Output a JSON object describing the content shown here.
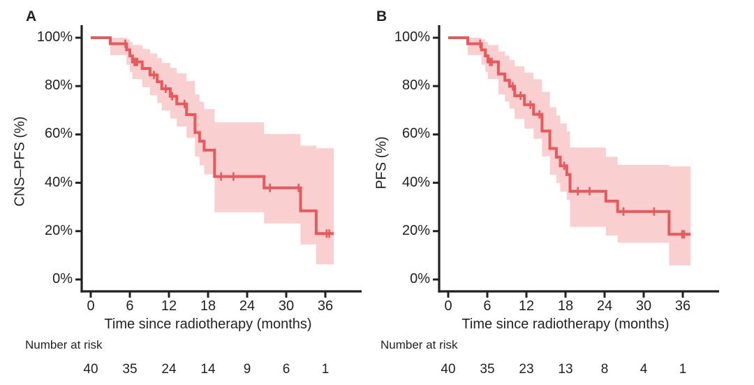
{
  "colors": {
    "curve": "#e8595c",
    "band": "#f9cfcf",
    "axis": "#231f20",
    "text": "#231f20"
  },
  "chart_data": [
    {
      "type": "line",
      "subtype": "kaplan-meier-step-curve-with-confidence-band",
      "panel_label": "A",
      "ylabel": "CNS–PFS (%)",
      "xlabel": "Time since radiotherapy (months)",
      "risk_label": "Number at risk",
      "xticks": [
        0,
        6,
        12,
        18,
        24,
        30,
        36
      ],
      "ytick_values": [
        0,
        20,
        40,
        60,
        80,
        100
      ],
      "ytick_labels": [
        "0%",
        "20%",
        "40%",
        "60%",
        "80%",
        "100%"
      ],
      "xlim": [
        0,
        41.5
      ],
      "ylim": [
        0,
        100
      ],
      "risk_counts": [
        40,
        35,
        24,
        14,
        9,
        6,
        1
      ],
      "steps": [
        [
          0,
          100
        ],
        [
          3,
          97.5
        ],
        [
          5.5,
          95
        ],
        [
          6,
          92.5
        ],
        [
          6.4,
          90
        ],
        [
          7.9,
          87.3
        ],
        [
          9.1,
          84.6
        ],
        [
          10.2,
          81.8
        ],
        [
          10.9,
          78.9
        ],
        [
          12.2,
          75.8
        ],
        [
          13.2,
          72.6
        ],
        [
          14.7,
          68.2
        ],
        [
          16,
          60.8
        ],
        [
          16.7,
          57.2
        ],
        [
          17.4,
          53.5
        ],
        [
          19,
          42.6
        ],
        [
          26.6,
          37.9
        ],
        [
          32.2,
          28.4
        ],
        [
          34.6,
          19
        ]
      ],
      "t_end": 37.3,
      "censor_times": [
        5.3,
        6.7,
        6.9,
        7.15,
        9.7,
        11.5,
        12.5,
        14.4,
        20,
        21.9,
        27.5,
        31.9,
        36.2,
        36.6
      ],
      "band": [
        [
          3,
          92.8,
          100
        ],
        [
          5.5,
          88.8,
          99.4
        ],
        [
          6,
          85.8,
          98.3
        ],
        [
          6.4,
          82.9,
          97
        ],
        [
          7.9,
          79.5,
          95.3
        ],
        [
          9.1,
          76.2,
          93.5
        ],
        [
          10.2,
          73,
          91.6
        ],
        [
          10.9,
          69.9,
          89.6
        ],
        [
          12.2,
          66.6,
          87.5
        ],
        [
          13.2,
          63.3,
          85.3
        ],
        [
          14.7,
          58.6,
          82.1
        ],
        [
          16,
          50.9,
          76.5
        ],
        [
          16.7,
          47.2,
          73.5
        ],
        [
          17.4,
          43.5,
          70.5
        ],
        [
          19,
          27.8,
          65
        ],
        [
          26.6,
          23.2,
          60.2
        ],
        [
          32.2,
          14.5,
          55.4
        ],
        [
          34.6,
          6.3,
          54.3
        ]
      ]
    },
    {
      "type": "line",
      "subtype": "kaplan-meier-step-curve-with-confidence-band",
      "panel_label": "B",
      "ylabel": "PFS (%)",
      "xlabel": "Time since radiotherapy (months)",
      "risk_label": "Number at risk",
      "xticks": [
        0,
        6,
        12,
        18,
        24,
        30,
        36
      ],
      "ytick_values": [
        0,
        20,
        40,
        60,
        80,
        100
      ],
      "ytick_labels": [
        "0%",
        "20%",
        "40%",
        "60%",
        "80%",
        "100%"
      ],
      "xlim": [
        0,
        41.5
      ],
      "ylim": [
        0,
        100
      ],
      "risk_counts": [
        40,
        35,
        23,
        13,
        8,
        4,
        1
      ],
      "steps": [
        [
          0,
          100
        ],
        [
          3,
          97.5
        ],
        [
          5.1,
          95
        ],
        [
          5.7,
          92.5
        ],
        [
          6.1,
          90
        ],
        [
          7.7,
          85
        ],
        [
          8.7,
          82.4
        ],
        [
          9.4,
          79.9
        ],
        [
          10.2,
          76
        ],
        [
          11.7,
          72.3
        ],
        [
          13.1,
          68.3
        ],
        [
          14.4,
          61.4
        ],
        [
          15.6,
          54.2
        ],
        [
          16.6,
          50.6
        ],
        [
          17.2,
          47
        ],
        [
          18.2,
          43.4
        ],
        [
          18.7,
          36.5
        ],
        [
          24.2,
          32.4
        ],
        [
          26,
          28.1
        ],
        [
          33.9,
          18.7
        ]
      ],
      "t_end": 37.2,
      "censor_times": [
        4.9,
        6.4,
        6.7,
        9.9,
        11.1,
        12.6,
        14.0,
        17.8,
        19.9,
        21.7,
        26.9,
        31.6,
        35.9,
        36.2
      ],
      "band": [
        [
          3,
          92.8,
          100
        ],
        [
          5.1,
          88.8,
          99.4
        ],
        [
          5.7,
          85.8,
          98.3
        ],
        [
          6.1,
          82.9,
          97
        ],
        [
          7.7,
          76.5,
          94.3
        ],
        [
          8.7,
          73.6,
          92.6
        ],
        [
          9.4,
          70.7,
          90.8
        ],
        [
          10.2,
          66.4,
          88.2
        ],
        [
          11.7,
          62.4,
          85.6
        ],
        [
          13.1,
          58.2,
          82.8
        ],
        [
          14.4,
          50.9,
          77.6
        ],
        [
          15.6,
          43.3,
          71.2
        ],
        [
          16.6,
          39.8,
          67.8
        ],
        [
          17.2,
          36.3,
          64.5
        ],
        [
          18.2,
          32.9,
          61.2
        ],
        [
          18.7,
          21.8,
          54.6
        ],
        [
          24.2,
          18.2,
          50.8
        ],
        [
          26,
          15.2,
          47.4
        ],
        [
          33.9,
          5.8,
          46.8
        ]
      ]
    }
  ]
}
